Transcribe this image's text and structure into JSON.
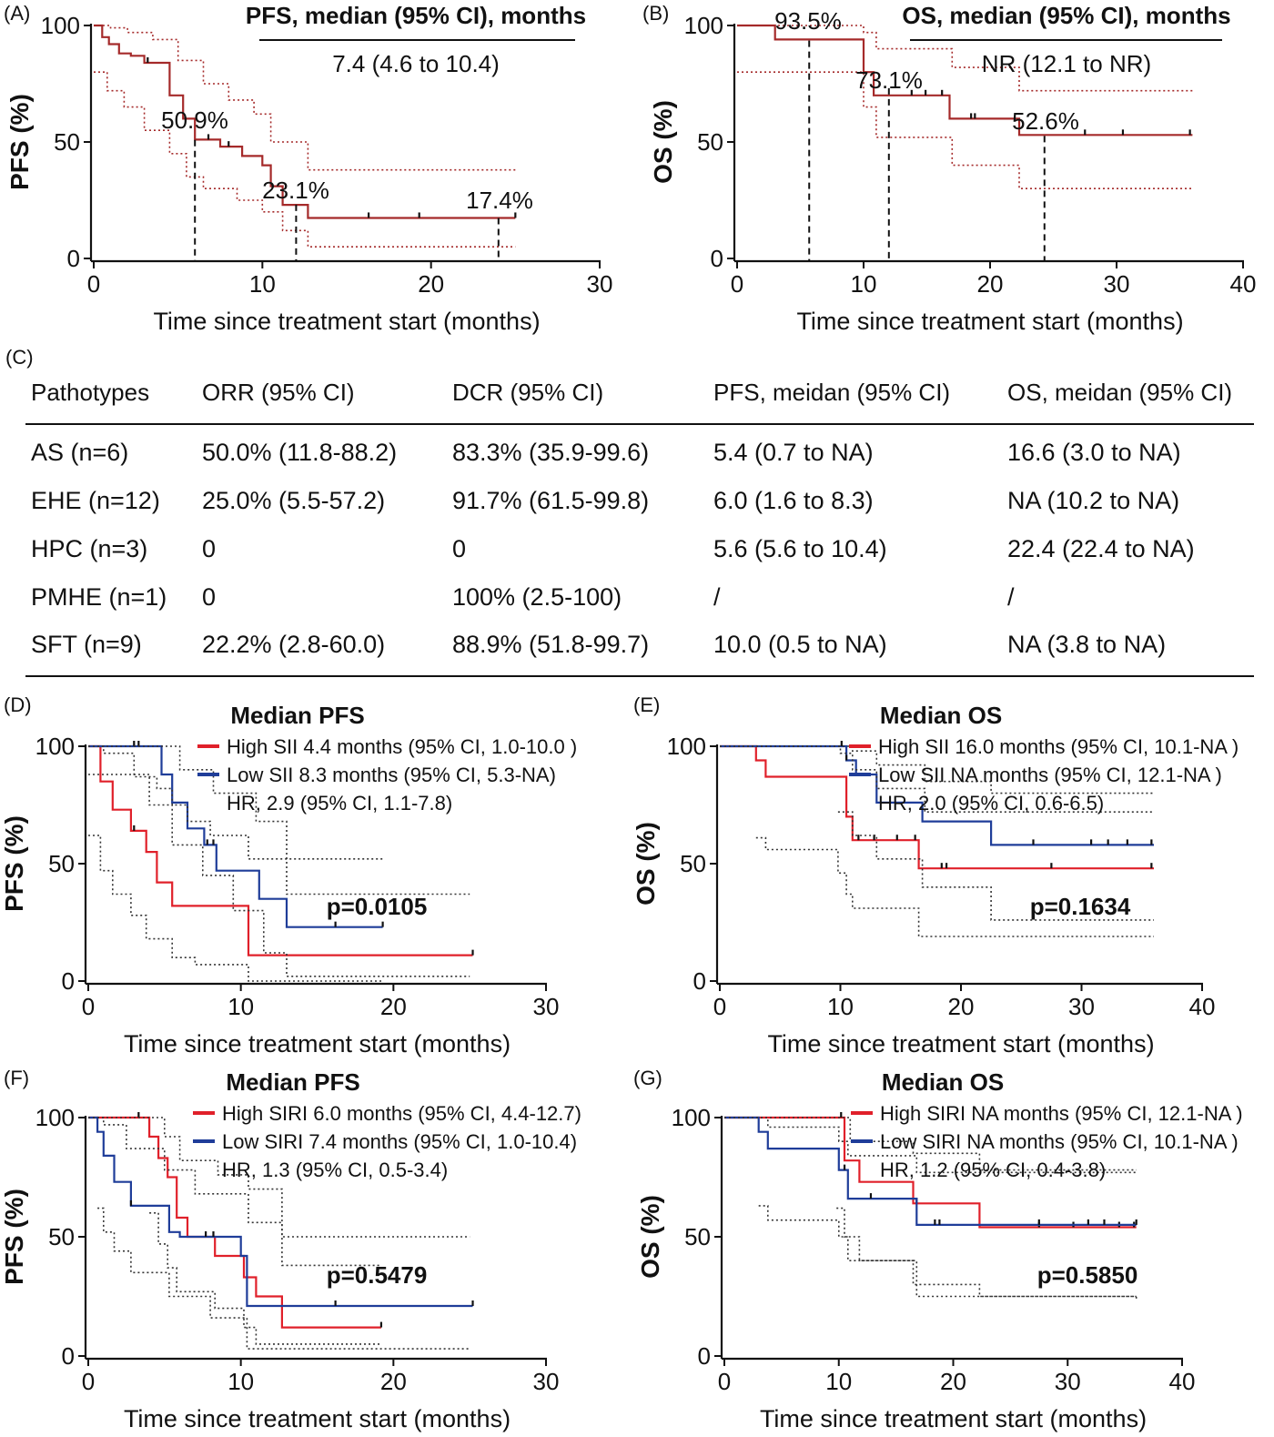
{
  "panels": {
    "A": {
      "label": "(A)",
      "header": "PFS, median (95% CI), months",
      "median": "7.4 (4.6 to 10.4)",
      "ylabel": "PFS (%)",
      "xlabel": "Time since treatment start (months)",
      "annotations": [
        "50.9%",
        "23.1%",
        "17.4%"
      ]
    },
    "B": {
      "label": "(B)",
      "header": "OS, median (95% CI), months",
      "median": "NR (12.1 to NR)",
      "ylabel": "OS (%)",
      "xlabel": "Time since treatment start (months)",
      "annotations": [
        "93.5%",
        "73.1%",
        "52.6%"
      ]
    },
    "D": {
      "label": "(D)",
      "title": "Median PFS",
      "legend": [
        "High SII 4.4 months (95% CI, 1.0-10.0 )",
        "Low SII 8.3 months (95% CI, 5.3-NA)"
      ],
      "hr": "HR, 2.9 (95% CI, 1.1-7.8)",
      "p": "p=0.0105",
      "ylabel": "PFS (%)",
      "xlabel": "Time since treatment start (months)"
    },
    "E": {
      "label": "(E)",
      "title": "Median OS",
      "legend": [
        "High SII 16.0 months (95% CI, 10.1-NA )",
        "Low SII NA months (95% CI, 12.1-NA )"
      ],
      "hr": "HR, 2.0 (95% CI, 0.6-6.5)",
      "p": "p=0.1634",
      "ylabel": "OS (%)",
      "xlabel": "Time since treatment start (months)"
    },
    "F": {
      "label": "(F)",
      "title": "Median PFS",
      "legend": [
        "High SIRI 6.0 months (95% CI, 4.4-12.7)",
        "Low SIRI 7.4 months (95% CI,  1.0-10.4)"
      ],
      "hr": "HR, 1.3 (95% CI, 0.5-3.4)",
      "p": "p=0.5479",
      "ylabel": "PFS (%)",
      "xlabel": "Time since treatment start (months)"
    },
    "G": {
      "label": "(G)",
      "title": "Median OS",
      "legend": [
        "High SIRI NA months (95% CI, 12.1-NA )",
        "Low SIRI NA months (95% CI, 10.1-NA )"
      ],
      "hr": "HR, 1.2 (95% CI, 0.4-3.8)",
      "p": "p=0.5850",
      "ylabel": "OS (%)",
      "xlabel": "Time since treatment start (months)"
    }
  },
  "table": {
    "label": "(C)",
    "headers": [
      "Pathotypes",
      "ORR (95% CI)",
      "DCR (95% CI)",
      "PFS, meidan (95% CI)",
      "OS, meidan (95% CI)"
    ],
    "rows": [
      [
        "AS (n=6)",
        "50.0% (11.8-88.2)",
        "83.3% (35.9-99.6)",
        "5.4 (0.7 to NA)",
        "16.6 (3.0 to NA)"
      ],
      [
        "EHE (n=12)",
        "25.0% (5.5-57.2)",
        "91.7% (61.5-99.8)",
        "6.0 (1.6 to 8.3)",
        "NA (10.2 to NA)"
      ],
      [
        "HPC (n=3)",
        "0",
        "0",
        "5.6 (5.6 to 10.4)",
        "22.4 (22.4 to NA)"
      ],
      [
        "PMHE (n=1)",
        "0",
        "100% (2.5-100)",
        "/",
        "/"
      ],
      [
        "SFT (n=9)",
        "22.2% (2.8-60.0)",
        "88.9% (51.8-99.7)",
        "10.0 (0.5 to NA)",
        "NA (3.8 to NA)"
      ]
    ]
  },
  "colors": {
    "dark_red": "#a52a2a",
    "red": "#e0202a",
    "blue": "#1f3d99",
    "ci": "#333333"
  },
  "chart_data": [
    {
      "id": "A",
      "type": "line",
      "xlim": [
        0,
        30
      ],
      "ylim": [
        0,
        100
      ],
      "xticks": [
        0,
        10,
        20,
        30
      ],
      "yticks": [
        0,
        50,
        100
      ],
      "series": [
        {
          "role": "estimate",
          "color": "dark_red",
          "style": "solid",
          "x": [
            0,
            0.5,
            0.9,
            1.5,
            2.2,
            3.0,
            4.5,
            5.3,
            6.0,
            7.5,
            8.8,
            10.0,
            10.5,
            11.2,
            12.7,
            25
          ],
          "y": [
            100,
            95,
            92,
            88,
            87,
            84,
            70,
            60,
            51,
            48,
            44,
            40,
            31,
            23,
            17.4,
            17.4
          ],
          "censor_x": [
            3.2,
            6.8,
            8.0,
            16.3,
            19.3,
            25
          ]
        },
        {
          "role": "ci-upper",
          "color": "dark_red",
          "style": "dotted",
          "x": [
            0,
            1.0,
            2.0,
            3.5,
            5.0,
            6.5,
            8.0,
            9.5,
            10.5,
            12.7,
            25
          ],
          "y": [
            100,
            99,
            97,
            94,
            85,
            75,
            68,
            62,
            50,
            38,
            38
          ]
        },
        {
          "role": "ci-lower",
          "color": "dark_red",
          "style": "dotted",
          "x": [
            0,
            0.8,
            1.8,
            3.0,
            4.5,
            5.5,
            6.5,
            8.5,
            10.0,
            11.2,
            12.7,
            25
          ],
          "y": [
            80,
            72,
            65,
            55,
            45,
            35,
            30,
            25,
            20,
            12,
            5,
            5
          ]
        }
      ],
      "reference_lines": [
        {
          "x": 6,
          "y": 50.9
        },
        {
          "x": 12,
          "y": 23.1
        },
        {
          "x": 24,
          "y": 17.4
        }
      ]
    },
    {
      "id": "B",
      "type": "line",
      "xlim": [
        0,
        40
      ],
      "ylim": [
        0,
        100
      ],
      "xticks": [
        0,
        10,
        20,
        30,
        40
      ],
      "yticks": [
        0,
        50,
        100
      ],
      "series": [
        {
          "role": "estimate",
          "color": "dark_red",
          "style": "solid",
          "x": [
            0,
            3.0,
            10.0,
            10.8,
            16.8,
            22.3,
            36
          ],
          "y": [
            100,
            94,
            80,
            70,
            60,
            53,
            53
          ],
          "censor_x": [
            13.8,
            14.9,
            16.2,
            18.5,
            18.8,
            27.5,
            30.5,
            35.8
          ]
        },
        {
          "role": "ci-upper",
          "color": "dark_red",
          "style": "dotted",
          "x": [
            0,
            3.0,
            10.0,
            11.0,
            17.0,
            22.3,
            36
          ],
          "y": [
            100,
            100,
            97,
            90,
            82,
            72,
            72
          ]
        },
        {
          "role": "ci-lower",
          "color": "dark_red",
          "style": "dotted",
          "x": [
            0,
            3.0,
            10.0,
            11.0,
            17.0,
            22.3,
            36
          ],
          "y": [
            80,
            80,
            65,
            52,
            40,
            30,
            30
          ]
        }
      ],
      "reference_lines": [
        {
          "x": 5.7,
          "y": 93.5
        },
        {
          "x": 12,
          "y": 73.1
        },
        {
          "x": 24.3,
          "y": 52.6
        }
      ]
    },
    {
      "id": "D",
      "type": "line",
      "xlim": [
        0,
        30
      ],
      "ylim": [
        0,
        100
      ],
      "xticks": [
        0,
        10,
        20,
        30
      ],
      "yticks": [
        0,
        50,
        100
      ],
      "series": [
        {
          "name": "High SII 4.4 months (95% CI, 1.0-10.0 )",
          "color": "red",
          "style": "solid",
          "x": [
            0,
            0.8,
            1.6,
            2.8,
            3.8,
            4.5,
            5.5,
            10.0,
            10.5,
            25.2
          ],
          "y": [
            100,
            85,
            73,
            64,
            55,
            42,
            32,
            32,
            11,
            11
          ],
          "censor_x": [
            3.0,
            25.2
          ]
        },
        {
          "name": "Low SII 8.3 months (95% CI, 5.3-NA)",
          "color": "blue",
          "style": "solid",
          "x": [
            0,
            4.8,
            5.5,
            6.5,
            7.6,
            8.4,
            11.2,
            13.0,
            19.3
          ],
          "y": [
            100,
            88,
            76,
            65,
            58,
            47,
            35,
            23,
            23
          ],
          "censor_x": [
            3.0,
            3.3,
            7.8,
            8.2,
            16.2,
            19.3
          ]
        },
        {
          "role": "ci",
          "color": "ci",
          "style": "dotted",
          "x": [
            0,
            1.0,
            3.0,
            4.5,
            5.5,
            6.5,
            8.0,
            10.5,
            13.0,
            25
          ],
          "y": [
            100,
            97,
            87,
            82,
            75,
            68,
            62,
            52,
            37,
            37
          ]
        },
        {
          "role": "ci",
          "color": "ci",
          "style": "dotted",
          "x": [
            0,
            4.8,
            6.0,
            8.2,
            11.0,
            13.0,
            19.3
          ],
          "y": [
            100,
            100,
            90,
            80,
            68,
            52,
            52
          ]
        },
        {
          "role": "ci",
          "color": "ci",
          "style": "dotted",
          "x": [
            0,
            0.8,
            1.6,
            2.8,
            3.8,
            5.5,
            7.0,
            10.5,
            19.3
          ],
          "y": [
            62,
            47,
            37,
            28,
            18,
            10,
            7,
            0,
            0
          ]
        },
        {
          "role": "ci",
          "color": "ci",
          "style": "dotted",
          "x": [
            0,
            4.0,
            5.5,
            7.5,
            9.5,
            11.5,
            13.0,
            25
          ],
          "y": [
            88,
            75,
            58,
            45,
            30,
            12,
            2,
            2
          ]
        }
      ]
    },
    {
      "id": "E",
      "type": "line",
      "xlim": [
        0,
        40
      ],
      "ylim": [
        0,
        100
      ],
      "xticks": [
        0,
        10,
        20,
        30,
        40
      ],
      "yticks": [
        0,
        50,
        100
      ],
      "series": [
        {
          "name": "High SII 16.0 months (95% CI, 10.1-NA )",
          "color": "red",
          "style": "solid",
          "x": [
            0,
            3.0,
            3.8,
            9.8,
            10.5,
            11.0,
            16.5,
            36
          ],
          "y": [
            100,
            94,
            87,
            87,
            70,
            60,
            48,
            48
          ],
          "censor_x": [
            11.5,
            12.8,
            14.7,
            16.2,
            18.4,
            18.8,
            27.5,
            35.8
          ]
        },
        {
          "name": "Low SII NA months (95% CI, 12.1-NA )",
          "color": "blue",
          "style": "solid",
          "x": [
            0,
            9.8,
            10.5,
            11.3,
            13.0,
            16.8,
            22.5,
            36
          ],
          "y": [
            100,
            100,
            94,
            88,
            76,
            68,
            58,
            58
          ],
          "censor_x": [
            10.1,
            10.5,
            26.0,
            30.8,
            32.2,
            33.8,
            35.8
          ]
        },
        {
          "role": "ci",
          "color": "ci",
          "style": "dotted",
          "x": [
            0,
            10.0,
            11.0,
            13.0,
            17.0,
            36
          ],
          "y": [
            100,
            97,
            90,
            82,
            72,
            72
          ]
        },
        {
          "role": "ci",
          "color": "ci",
          "style": "dotted",
          "x": [
            0,
            9.8,
            11.0,
            13.0,
            17.0,
            22.5,
            36
          ],
          "y": [
            100,
            100,
            98,
            92,
            85,
            80,
            80
          ]
        },
        {
          "role": "ci",
          "color": "ci",
          "style": "dotted",
          "x": [
            3.0,
            3.8,
            9.8,
            10.5,
            11.0,
            16.5,
            36
          ],
          "y": [
            61,
            56,
            46,
            37,
            31,
            19,
            19
          ]
        },
        {
          "role": "ci",
          "color": "ci",
          "style": "dotted",
          "x": [
            9.8,
            11.0,
            13.0,
            16.8,
            22.5,
            36
          ],
          "y": [
            72,
            62,
            52,
            40,
            26,
            26
          ]
        }
      ]
    },
    {
      "id": "F",
      "type": "line",
      "xlim": [
        0,
        30
      ],
      "ylim": [
        0,
        100
      ],
      "xticks": [
        0,
        10,
        20,
        30
      ],
      "yticks": [
        0,
        50,
        100
      ],
      "series": [
        {
          "name": "High SIRI 6.0 months (95% CI, 4.4-12.7)",
          "color": "red",
          "style": "solid",
          "x": [
            0,
            4.0,
            4.6,
            5.2,
            5.8,
            6.5,
            8.3,
            10.2,
            11.0,
            12.7,
            19.2
          ],
          "y": [
            100,
            92,
            83,
            75,
            58,
            50,
            42,
            33,
            25,
            12,
            12
          ],
          "censor_x": [
            3.3,
            19.2
          ]
        },
        {
          "name": "Low SIRI 7.4 months (95% CI,  1.0-10.4)",
          "color": "blue",
          "style": "solid",
          "x": [
            0,
            0.6,
            1.0,
            1.7,
            2.8,
            4.6,
            5.3,
            6.0,
            7.5,
            10.0,
            10.4,
            25.2
          ],
          "y": [
            100,
            94,
            84,
            73,
            63,
            63,
            52,
            50,
            50,
            42,
            21,
            21
          ],
          "censor_x": [
            2.8,
            7.7,
            8.2,
            16.2,
            25.2
          ]
        },
        {
          "role": "ci",
          "color": "ci",
          "style": "dotted",
          "x": [
            0,
            4.0,
            5.0,
            6.0,
            8.5,
            10.5,
            12.7,
            25
          ],
          "y": [
            100,
            100,
            92,
            82,
            76,
            70,
            50,
            50
          ]
        },
        {
          "role": "ci",
          "color": "ci",
          "style": "dotted",
          "x": [
            0,
            1.0,
            2.5,
            5.0,
            7.0,
            10.5,
            12.7,
            19.2
          ],
          "y": [
            100,
            97,
            87,
            78,
            68,
            56,
            38,
            38
          ]
        },
        {
          "role": "ci",
          "color": "ci",
          "style": "dotted",
          "x": [
            4.0,
            4.6,
            5.2,
            5.8,
            8.3,
            10.2,
            11.0,
            19.2
          ],
          "y": [
            60,
            47,
            37,
            27,
            20,
            12,
            5,
            5
          ]
        },
        {
          "role": "ci",
          "color": "ci",
          "style": "dotted",
          "x": [
            0.6,
            1.0,
            1.7,
            2.8,
            5.3,
            8.0,
            10.4,
            25
          ],
          "y": [
            62,
            52,
            44,
            35,
            25,
            16,
            3,
            3
          ]
        }
      ]
    },
    {
      "id": "G",
      "type": "line",
      "xlim": [
        0,
        40
      ],
      "ylim": [
        0,
        100
      ],
      "xticks": [
        0,
        10,
        20,
        30,
        40
      ],
      "yticks": [
        0,
        50,
        100
      ],
      "series": [
        {
          "name": "High SIRI NA months (95% CI, 12.1-NA )",
          "color": "red",
          "style": "solid",
          "x": [
            0,
            9.8,
            10.5,
            11.8,
            16.5,
            22.3,
            36
          ],
          "y": [
            100,
            100,
            82,
            73,
            64,
            54,
            54
          ],
          "censor_x": [
            10.2,
            16.8,
            27.5,
            30.5,
            34.5,
            35.8
          ]
        },
        {
          "name": "Low SIRI NA months (95% CI, 10.1-NA )",
          "color": "blue",
          "style": "solid",
          "x": [
            0,
            3.0,
            3.8,
            10.0,
            10.8,
            16.8,
            36
          ],
          "y": [
            100,
            94,
            87,
            78,
            66,
            55,
            55
          ],
          "censor_x": [
            10.5,
            12.8,
            18.4,
            18.8,
            27.5,
            31.8,
            33.2,
            36
          ]
        },
        {
          "role": "ci",
          "color": "ci",
          "style": "dotted",
          "x": [
            0,
            10.0,
            11.0,
            16.5,
            22.3,
            36
          ],
          "y": [
            100,
            100,
            90,
            85,
            78,
            78
          ]
        },
        {
          "role": "ci",
          "color": "ci",
          "style": "dotted",
          "x": [
            0,
            3.0,
            3.8,
            10.0,
            10.8,
            16.8,
            36
          ],
          "y": [
            100,
            100,
            96,
            90,
            84,
            77,
            77
          ]
        },
        {
          "role": "ci",
          "color": "ci",
          "style": "dotted",
          "x": [
            9.8,
            10.5,
            11.8,
            16.5,
            22.3,
            36
          ],
          "y": [
            62,
            50,
            40,
            30,
            25,
            25
          ]
        },
        {
          "role": "ci",
          "color": "ci",
          "style": "dotted",
          "x": [
            3.0,
            3.8,
            10.0,
            10.8,
            16.8,
            36
          ],
          "y": [
            63,
            57,
            50,
            40,
            25,
            24
          ]
        }
      ]
    }
  ]
}
